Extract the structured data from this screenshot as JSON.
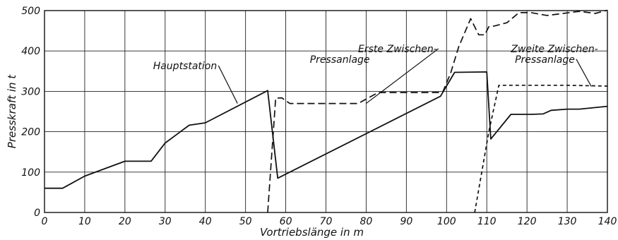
{
  "chart_data": {
    "type": "line",
    "xlabel": "Vortriebslänge in m",
    "ylabel": "Presskraft in t",
    "xlim": [
      0,
      140
    ],
    "ylim": [
      0,
      500
    ],
    "xticks": [
      0,
      10,
      20,
      30,
      40,
      50,
      60,
      70,
      80,
      90,
      100,
      110,
      120,
      130,
      140
    ],
    "yticks": [
      0,
      100,
      200,
      300,
      400,
      500
    ],
    "grid": true,
    "series": [
      {
        "name": "Hauptstation",
        "style": "solid",
        "points": [
          [
            0,
            60
          ],
          [
            4.5,
            60
          ],
          [
            10,
            90
          ],
          [
            20,
            127
          ],
          [
            26.5,
            127
          ],
          [
            30,
            172
          ],
          [
            36,
            216
          ],
          [
            40,
            222
          ],
          [
            55.5,
            302
          ],
          [
            58,
            85
          ],
          [
            98.5,
            288
          ],
          [
            102,
            347
          ],
          [
            110,
            348
          ],
          [
            111,
            182
          ],
          [
            116,
            243
          ],
          [
            121,
            243
          ],
          [
            124,
            244
          ],
          [
            126,
            253
          ],
          [
            130,
            256
          ],
          [
            133,
            256
          ],
          [
            140,
            263
          ]
        ]
      },
      {
        "name": "Erste Zwischen-Pressanlage",
        "style": "dashed",
        "points": [
          [
            55.5,
            0
          ],
          [
            57.5,
            283
          ],
          [
            59,
            284
          ],
          [
            61,
            270
          ],
          [
            78,
            270
          ],
          [
            83,
            297
          ],
          [
            99,
            297
          ],
          [
            101,
            345
          ],
          [
            103,
            410
          ],
          [
            106,
            480
          ],
          [
            108,
            440
          ],
          [
            109.5,
            440
          ],
          [
            110.5,
            460
          ],
          [
            112,
            462
          ],
          [
            115,
            470
          ],
          [
            118,
            495
          ],
          [
            121,
            495
          ],
          [
            125,
            488
          ],
          [
            133,
            498
          ],
          [
            137,
            493
          ],
          [
            140,
            501
          ]
        ]
      },
      {
        "name": "Zweite Zwischen-Pressanlage",
        "style": "short-dashed",
        "points": [
          [
            107,
            0
          ],
          [
            110.5,
            200
          ],
          [
            113,
            315
          ],
          [
            130,
            315
          ],
          [
            140,
            313
          ]
        ]
      }
    ],
    "annotations": [
      {
        "text": "Hauptstation",
        "x": 27,
        "y": 355,
        "target": [
          48,
          270
        ]
      },
      {
        "text": "Erste Zwischen-",
        "x": 78,
        "y": 397,
        "target": [
          80,
          270
        ]
      },
      {
        "text": "Pressanlage",
        "x": 66,
        "y": 371
      },
      {
        "text": "Zweite Zwischen-",
        "x": 116,
        "y": 397
      },
      {
        "text": "Pressanlage",
        "x": 117,
        "y": 371,
        "target": [
          136,
          312
        ]
      }
    ]
  }
}
